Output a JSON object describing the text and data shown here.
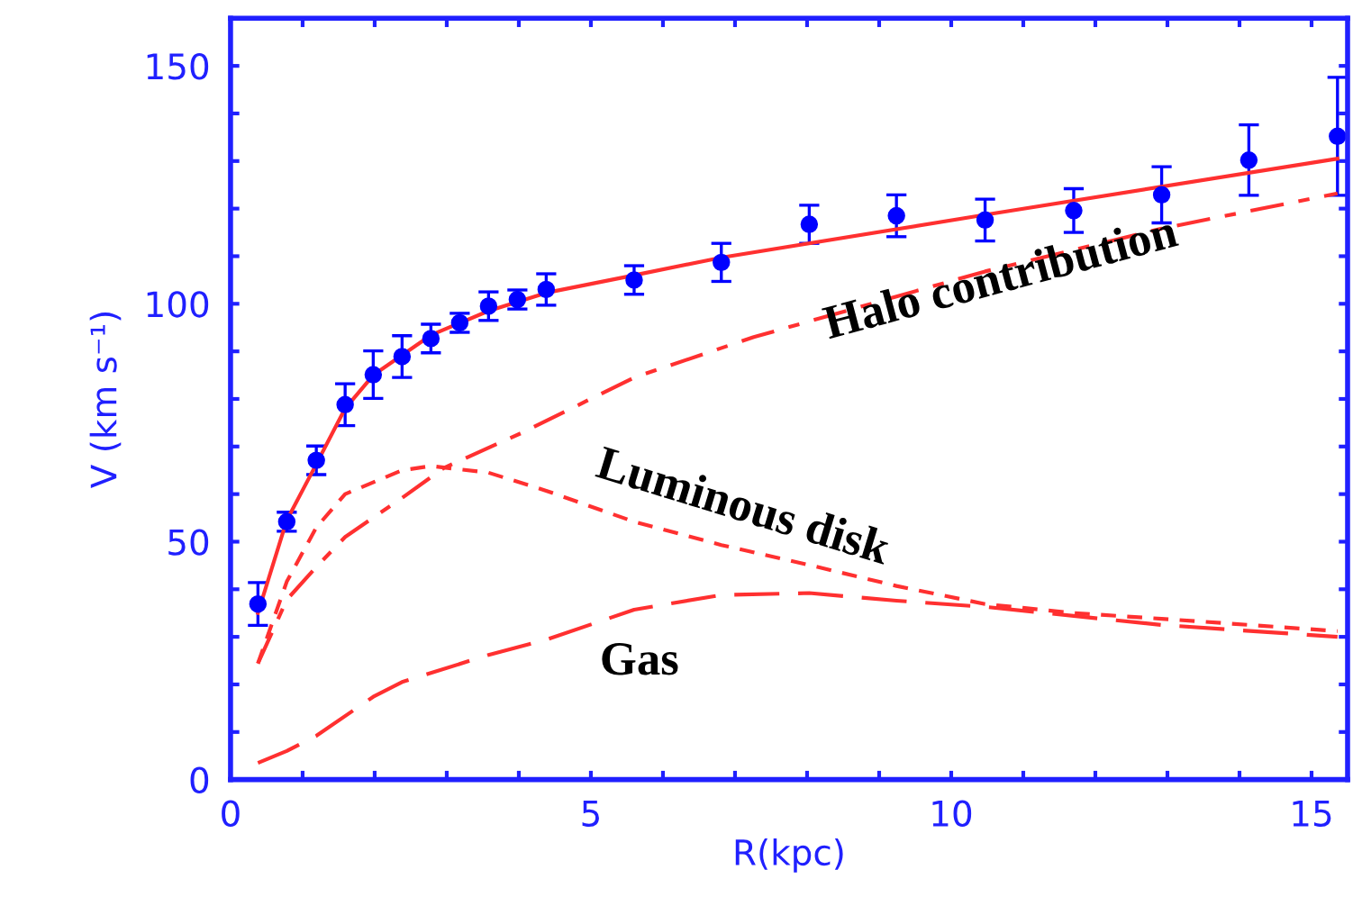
{
  "chart_data": {
    "type": "scatter",
    "xlabel": "R(kpc)",
    "ylabel": "V (km s⁻¹)",
    "xlim": [
      0,
      15.5
    ],
    "ylim": [
      0,
      160
    ],
    "xticks": [
      0,
      {
        "value": 1,
        "label": null
      },
      {
        "value": 2,
        "label": null
      },
      {
        "value": 3,
        "label": null
      },
      {
        "value": 4,
        "label": null
      },
      5,
      {
        "value": 6,
        "label": null
      },
      {
        "value": 7,
        "label": null
      },
      {
        "value": 8,
        "label": null
      },
      {
        "value": 9,
        "label": null
      },
      10,
      {
        "value": 11,
        "label": null
      },
      {
        "value": 12,
        "label": null
      },
      {
        "value": 13,
        "label": null
      },
      {
        "value": 14,
        "label": null
      },
      15
    ],
    "yticks": [
      0,
      {
        "value": 10,
        "label": null
      },
      {
        "value": 20,
        "label": null
      },
      {
        "value": 30,
        "label": null
      },
      {
        "value": 40,
        "label": null
      },
      50,
      {
        "value": 60,
        "label": null
      },
      {
        "value": 70,
        "label": null
      },
      {
        "value": 80,
        "label": null
      },
      {
        "value": 90,
        "label": null
      },
      100,
      {
        "value": 110,
        "label": null
      },
      {
        "value": 120,
        "label": null
      },
      {
        "value": 130,
        "label": null
      },
      {
        "value": 140,
        "label": null
      },
      150
    ],
    "grid": false,
    "series": [
      {
        "color": "#0000ff",
        "marker": "circle",
        "x": [
          0.38,
          0.78,
          1.19,
          1.59,
          1.98,
          2.38,
          2.78,
          3.18,
          3.58,
          3.98,
          4.38,
          5.6,
          6.81,
          8.03,
          9.24,
          10.47,
          11.7,
          12.92,
          14.13,
          15.36
        ],
        "values": [
          36.9,
          54.2,
          67.1,
          78.8,
          85.1,
          88.9,
          92.7,
          96.0,
          99.5,
          100.9,
          103.0,
          105.0,
          108.7,
          116.7,
          118.5,
          117.6,
          119.6,
          122.9,
          130.2,
          135.2
        ],
        "errors": [
          4.5,
          2,
          3,
          4.4,
          5,
          4.4,
          3,
          2,
          3,
          2,
          3.3,
          3,
          4,
          4,
          4.4,
          4.4,
          4.6,
          5.9,
          7.4,
          12.4
        ]
      },
      {
        "type": "line",
        "color": "#ff3030",
        "line_style": "solid",
        "x": [
          0.38,
          0.78,
          1.19,
          1.59,
          1.98,
          2.78,
          3.58,
          4.38,
          5.6,
          6.81,
          10.47,
          15.36
        ],
        "values": [
          35,
          54.5,
          66.3,
          78,
          85,
          93.4,
          98.5,
          102.3,
          106,
          109.7,
          118.7,
          130.5
        ]
      },
      {
        "type": "line",
        "color": "#ff3030",
        "line_style": "dashdot",
        "x": [
          0.38,
          0.78,
          1.19,
          1.59,
          2.38,
          2.96,
          4.06,
          5.6,
          7.26,
          10.47,
          12.92,
          15.36
        ],
        "values": [
          24.4,
          37.8,
          44.7,
          51,
          59.2,
          65.5,
          73,
          84.5,
          93,
          106.8,
          115.8,
          123.2
        ]
      },
      {
        "type": "line",
        "color": "#ff3030",
        "line_style": "dashed",
        "x": [
          0.38,
          0.78,
          1.19,
          1.59,
          2.38,
          2.78,
          3.58,
          4.38,
          5.6,
          6.81,
          8.03,
          9.24,
          10.47,
          11.7,
          12.92,
          15.36
        ],
        "values": [
          24.4,
          41.6,
          53,
          60,
          65,
          65.9,
          64.5,
          60.7,
          54.2,
          49.3,
          45.1,
          40.7,
          36.9,
          35.0,
          33.8,
          31.2
        ]
      },
      {
        "type": "line",
        "color": "#ff3030",
        "line_style": "longdashed",
        "x": [
          0.38,
          0.78,
          1.19,
          1.98,
          2.38,
          3.58,
          4.38,
          5.6,
          6.81,
          8.03,
          9.24,
          10.47,
          11.7,
          12.92,
          15.36
        ],
        "values": [
          3.5,
          6.0,
          9.2,
          17.4,
          20.5,
          26.2,
          29.4,
          35.7,
          38.8,
          39.2,
          37.6,
          36.3,
          34.4,
          32.5,
          30.0
        ]
      }
    ],
    "annotations": [
      "Halo contribution",
      "Luminous disk",
      "Gas"
    ]
  }
}
